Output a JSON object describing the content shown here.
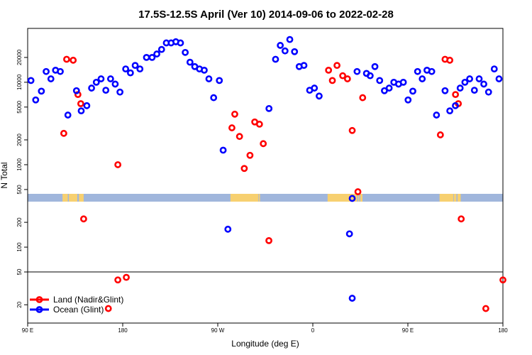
{
  "chart_data": {
    "type": "scatter",
    "title": "17.5S-12.5S April (Ver 10)   2014-09-06 to 2022-02-28",
    "xlabel": "Longitude (deg E)",
    "ylabel": "N Total",
    "y_scale": "log",
    "ylim": [
      12,
      45000
    ],
    "x_ticks": [
      {
        "value": 90,
        "label": "90 E"
      },
      {
        "value": 180,
        "label": "180"
      },
      {
        "value": 270,
        "label": "90 W"
      },
      {
        "value": 360,
        "label": "0"
      },
      {
        "value": 450,
        "label": "90 E"
      },
      {
        "value": 540,
        "label": "180"
      }
    ],
    "xlim": [
      90,
      540
    ],
    "y_ticks": [
      {
        "value": 20,
        "label": "20"
      },
      {
        "value": 50,
        "label": "50"
      },
      {
        "value": 100,
        "label": "100"
      },
      {
        "value": 200,
        "label": "200"
      },
      {
        "value": 500,
        "label": "500"
      },
      {
        "value": 1000,
        "label": "1000"
      },
      {
        "value": 2000,
        "label": "2000"
      },
      {
        "value": 5000,
        "label": "5000"
      },
      {
        "value": 10000,
        "label": "10000"
      },
      {
        "value": 20000,
        "label": "20000"
      }
    ],
    "reference_line_y": 50,
    "series": [
      {
        "name": "Land (Nadir&Glint)",
        "color": "#ff0000",
        "points": [
          [
            124.2,
            2400
          ],
          [
            126.9,
            19000
          ],
          [
            133.1,
            18500
          ],
          [
            137.6,
            7100
          ],
          [
            140.3,
            5500
          ],
          [
            143.0,
            220
          ],
          [
            175.4,
            1000
          ],
          [
            175.4,
            40
          ],
          [
            183.4,
            43
          ],
          [
            166.4,
            18
          ],
          [
            283.4,
            2800
          ],
          [
            286.1,
            4100
          ],
          [
            290.6,
            2200
          ],
          [
            295.1,
            900
          ],
          [
            300.5,
            1300
          ],
          [
            305.0,
            3300
          ],
          [
            309.5,
            3100
          ],
          [
            313.1,
            1800
          ],
          [
            318.4,
            120
          ],
          [
            374.9,
            14000
          ],
          [
            378.5,
            10500
          ],
          [
            382.9,
            16000
          ],
          [
            388.3,
            12000
          ],
          [
            392.8,
            11000
          ],
          [
            397.3,
            2600
          ],
          [
            402.7,
            470
          ],
          [
            407.2,
            6500
          ],
          [
            480.8,
            2300
          ],
          [
            485.2,
            19000
          ],
          [
            489.7,
            18500
          ],
          [
            495.1,
            7100
          ],
          [
            497.8,
            5500
          ],
          [
            500.5,
            220
          ],
          [
            523.8,
            18
          ],
          [
            540.0,
            40
          ]
        ]
      },
      {
        "name": "Ocean (Glint)",
        "color": "#0000ff",
        "points": [
          [
            93.1,
            10500
          ],
          [
            97.6,
            6100
          ],
          [
            103.0,
            7800
          ],
          [
            107.5,
            13500
          ],
          [
            112.0,
            11000
          ],
          [
            116.4,
            14000
          ],
          [
            120.9,
            13500
          ],
          [
            128.1,
            4000
          ],
          [
            136.2,
            7900
          ],
          [
            140.7,
            4500
          ],
          [
            146.0,
            5200
          ],
          [
            150.5,
            8500
          ],
          [
            155.0,
            10000
          ],
          [
            159.5,
            11000
          ],
          [
            164.0,
            8000
          ],
          [
            168.5,
            11000
          ],
          [
            172.9,
            9500
          ],
          [
            177.4,
            7600
          ],
          [
            182.8,
            14500
          ],
          [
            187.3,
            13000
          ],
          [
            191.8,
            16000
          ],
          [
            196.3,
            14500
          ],
          [
            202.5,
            20000
          ],
          [
            207.8,
            20000
          ],
          [
            212.3,
            22000
          ],
          [
            216.8,
            25000
          ],
          [
            221.3,
            30000
          ],
          [
            225.8,
            30000
          ],
          [
            230.3,
            31000
          ],
          [
            234.7,
            30000
          ],
          [
            239.2,
            23000
          ],
          [
            243.7,
            17500
          ],
          [
            248.2,
            15500
          ],
          [
            252.7,
            14500
          ],
          [
            257.2,
            14000
          ],
          [
            261.6,
            11000
          ],
          [
            266.1,
            6500
          ],
          [
            271.5,
            10500
          ],
          [
            275.1,
            1500
          ],
          [
            279.6,
            165
          ],
          [
            318.5,
            4800
          ],
          [
            324.7,
            19000
          ],
          [
            329.2,
            28000
          ],
          [
            333.7,
            24000
          ],
          [
            338.2,
            33000
          ],
          [
            342.7,
            23500
          ],
          [
            347.1,
            15500
          ],
          [
            351.6,
            16000
          ],
          [
            357.0,
            8000
          ],
          [
            361.5,
            8500
          ],
          [
            366.0,
            6800
          ],
          [
            394.7,
            145
          ],
          [
            397.3,
            390
          ],
          [
            397.3,
            24
          ],
          [
            401.9,
            13500
          ],
          [
            410.8,
            12800
          ],
          [
            414.3,
            12000
          ],
          [
            418.8,
            15500
          ],
          [
            423.3,
            10500
          ],
          [
            427.8,
            7900
          ],
          [
            432.3,
            8500
          ],
          [
            436.7,
            10000
          ],
          [
            441.2,
            9500
          ],
          [
            445.7,
            10000
          ],
          [
            450.2,
            6100
          ],
          [
            454.7,
            7800
          ],
          [
            459.2,
            13500
          ],
          [
            463.6,
            11000
          ],
          [
            468.1,
            14000
          ],
          [
            472.6,
            13500
          ],
          [
            477.1,
            4000
          ],
          [
            485.2,
            7900
          ],
          [
            489.7,
            4500
          ],
          [
            495.0,
            5200
          ],
          [
            499.5,
            8500
          ],
          [
            504.0,
            10000
          ],
          [
            508.5,
            11000
          ],
          [
            513.0,
            8000
          ],
          [
            517.5,
            11000
          ],
          [
            521.9,
            9500
          ],
          [
            526.4,
            7600
          ],
          [
            531.8,
            14500
          ],
          [
            536.3,
            11000
          ]
        ]
      }
    ],
    "legend": {
      "position": "bottom-left",
      "items": [
        {
          "label": "Land (Nadir&Glint)",
          "color": "#ff0000"
        },
        {
          "label": "Ocean (Glint)",
          "color": "#0000ff"
        }
      ]
    },
    "land_mask_band": {
      "ocean_color": "#a0b6dc",
      "land_color": "#f7d070",
      "land_segments": [
        [
          123,
          128
        ],
        [
          129,
          137
        ],
        [
          138.5,
          143
        ],
        [
          282,
          308.5
        ],
        [
          309,
          310
        ],
        [
          374,
          402
        ],
        [
          403,
          404
        ],
        [
          405,
          407
        ],
        [
          480,
          493
        ],
        [
          493.5,
          496
        ],
        [
          497,
          500
        ]
      ]
    }
  }
}
